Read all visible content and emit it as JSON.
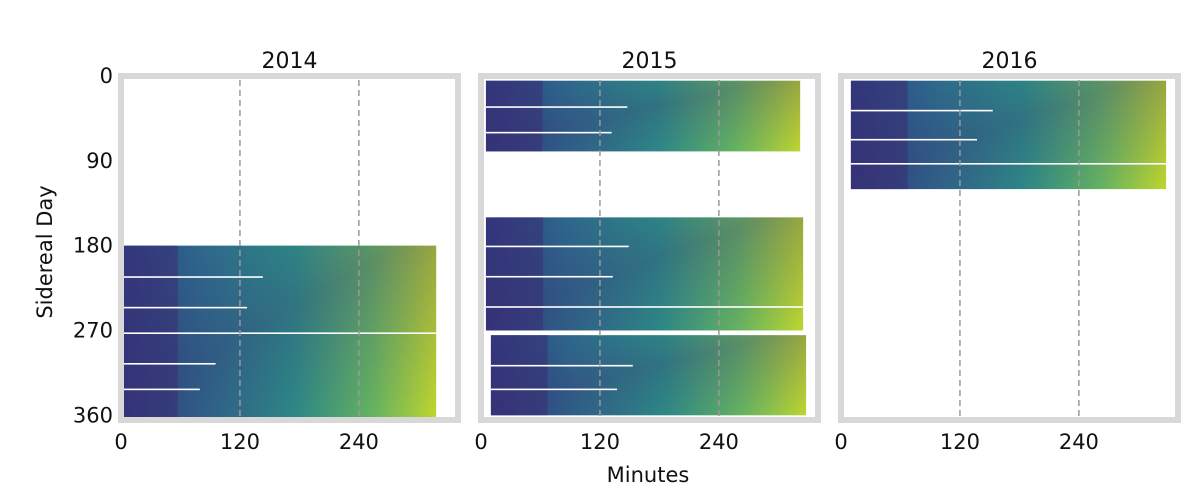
{
  "figure": {
    "xlabel": "Minutes",
    "ylabel": "Sidereal Day"
  },
  "chart_data": {
    "type": "heatmap",
    "xlabel": "Minutes",
    "ylabel": "Sidereal Day",
    "xlim": [
      0,
      340
    ],
    "ylim": [
      0,
      365
    ],
    "y_inverted": true,
    "xticks": [
      0,
      120,
      240
    ],
    "yticks": [
      0,
      90,
      180,
      270,
      360
    ],
    "reference_lines_x": [
      120,
      240
    ],
    "colormap": "viridis",
    "colors": {
      "frame": "#d8d8d8",
      "reference_line": "#9a9a9a",
      "low": "#3b2d72",
      "mid": "#21908d",
      "high": "#cde11d"
    },
    "panels": [
      {
        "title": "2014",
        "show_yticks": true,
        "data_blocks": [
          {
            "day_start": 180,
            "day_end": 362,
            "min_start": 0,
            "min_end": 318
          }
        ]
      },
      {
        "title": "2015",
        "show_yticks": false,
        "data_blocks": [
          {
            "day_start": 5,
            "day_end": 80,
            "min_start": 5,
            "min_end": 322
          },
          {
            "day_start": 150,
            "day_end": 270,
            "min_start": 5,
            "min_end": 325
          },
          {
            "day_start": 275,
            "day_end": 360,
            "min_start": 10,
            "min_end": 328
          }
        ]
      },
      {
        "title": "2016",
        "show_yticks": false,
        "data_blocks": [
          {
            "day_start": 5,
            "day_end": 120,
            "min_start": 10,
            "min_end": 328
          }
        ]
      }
    ]
  }
}
